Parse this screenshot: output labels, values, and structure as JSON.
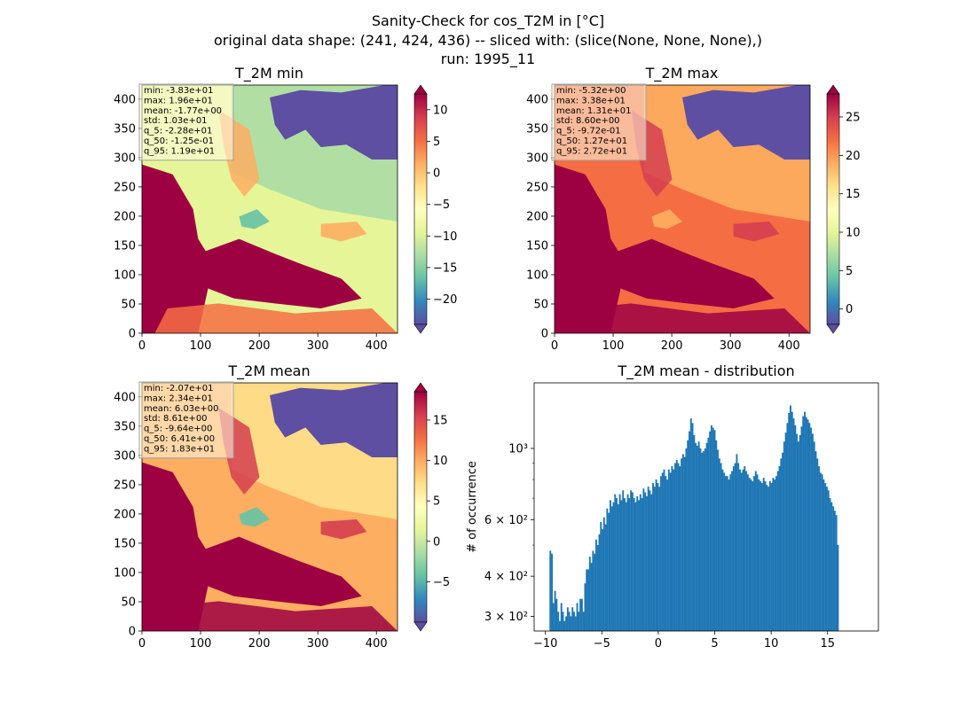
{
  "figure": {
    "title_lines": [
      "Sanity-Check for cos_T2M in [°C]",
      "original data shape: (241, 424, 436) -- sliced with: (slice(None, None, None),)",
      "run: 1995_11"
    ]
  },
  "colors": {
    "colormap": "Spectral_r",
    "histogram_bar": "#1f77b4",
    "stats_box_bg": "#fffbe3",
    "stats_box_edge": "#a0a0a0",
    "land_cold": "#5e4fa2",
    "sea_warm": "#9e0142"
  },
  "chart_data": [
    {
      "type": "heatmap",
      "title": "T_2M min",
      "x_ticks": [
        "0",
        "100",
        "200",
        "300",
        "400"
      ],
      "y_ticks": [
        "0",
        "50",
        "100",
        "150",
        "200",
        "250",
        "300",
        "350",
        "400"
      ],
      "xlim": [
        0,
        436
      ],
      "ylim": [
        0,
        424
      ],
      "colorbar": {
        "vmin": -24.0,
        "vmax": 12.5,
        "ticks": [
          "10",
          "5",
          "0",
          "−5",
          "−10",
          "−15",
          "−20"
        ],
        "tick_values": [
          10,
          5,
          0,
          -5,
          -10,
          -15,
          -20
        ],
        "extend": "both"
      },
      "stats": [
        "min: -3.83e+01",
        "max: 1.96e+01",
        "mean: -1.77e+00",
        "std: 1.03e+01",
        "q_5: -2.28e+01",
        "q_50: -1.25e-01",
        "q_95: 1.19e+01"
      ]
    },
    {
      "type": "heatmap",
      "title": "T_2M max",
      "x_ticks": [
        "0",
        "100",
        "200",
        "300",
        "400"
      ],
      "y_ticks": [
        "0",
        "50",
        "100",
        "150",
        "200",
        "250",
        "300",
        "350",
        "400"
      ],
      "xlim": [
        0,
        436
      ],
      "ylim": [
        0,
        424
      ],
      "colorbar": {
        "vmin": -2.0,
        "vmax": 28.0,
        "ticks": [
          "25",
          "20",
          "15",
          "10",
          "5",
          "0"
        ],
        "tick_values": [
          25,
          20,
          15,
          10,
          5,
          0
        ],
        "extend": "both"
      },
      "stats": [
        "min: -5.32e+00",
        "max: 3.38e+01",
        "mean: 1.31e+01",
        "std: 8.60e+00",
        "q_5: -9.72e-01",
        "q_50: 1.27e+01",
        "q_95: 2.72e+01"
      ]
    },
    {
      "type": "heatmap",
      "title": "T_2M mean",
      "x_ticks": [
        "0",
        "100",
        "200",
        "300",
        "400"
      ],
      "y_ticks": [
        "0",
        "50",
        "100",
        "150",
        "200",
        "250",
        "300",
        "350",
        "400"
      ],
      "xlim": [
        0,
        436
      ],
      "ylim": [
        0,
        424
      ],
      "colorbar": {
        "vmin": -10.0,
        "vmax": 18.5,
        "ticks": [
          "15",
          "10",
          "5",
          "0",
          "−5"
        ],
        "tick_values": [
          15,
          10,
          5,
          0,
          -5
        ],
        "extend": "both"
      },
      "stats": [
        "min: -2.07e+01",
        "max: 2.34e+01",
        "mean: 6.03e+00",
        "std: 8.61e+00",
        "q_5: -9.64e+00",
        "q_50: 6.41e+00",
        "q_95: 1.83e+01"
      ]
    },
    {
      "type": "bar",
      "title": "T_2M mean - distribution",
      "ylabel": "# of occurrence",
      "xlabel": "",
      "y_scale": "log",
      "xlim": [
        -11.0,
        19.5
      ],
      "ylim": [
        270,
        1600
      ],
      "x_ticks": [
        "−10",
        "−5",
        "0",
        "5",
        "10",
        "15"
      ],
      "x_tick_values": [
        -10,
        -5,
        0,
        5,
        10,
        15
      ],
      "y_ticks": [
        "3 × 10²",
        "4 × 10²",
        "6 × 10²",
        "10³"
      ],
      "y_tick_values": [
        300,
        400,
        600,
        1000
      ],
      "bin_start": -9.64,
      "bin_width": 0.14,
      "values": [
        480,
        470,
        330,
        360,
        340,
        310,
        290,
        330,
        310,
        290,
        300,
        320,
        310,
        300,
        320,
        310,
        300,
        330,
        310,
        340,
        340,
        310,
        380,
        420,
        420,
        460,
        440,
        480,
        470,
        520,
        500,
        540,
        590,
        560,
        610,
        580,
        650,
        630,
        690,
        660,
        680,
        720,
        700,
        670,
        720,
        690,
        740,
        700,
        680,
        720,
        700,
        740,
        730,
        700,
        680,
        710,
        690,
        720,
        700,
        750,
        730,
        710,
        760,
        740,
        720,
        780,
        760,
        800,
        780,
        760,
        820,
        840,
        860,
        820,
        800,
        860,
        840,
        880,
        860,
        900,
        920,
        900,
        880,
        930,
        960,
        940,
        1000,
        1060,
        1130,
        1240,
        1200,
        1100,
        1040,
        1020,
        1050,
        1000,
        970,
        980,
        1000,
        1040,
        1080,
        1130,
        1180,
        1160,
        1140,
        1060,
        990,
        930,
        900,
        860,
        840,
        820,
        820,
        800,
        830,
        850,
        880,
        900,
        960,
        900,
        860,
        840,
        860,
        880,
        850,
        830,
        810,
        800,
        790,
        820,
        850,
        830,
        800,
        790,
        780,
        810,
        790,
        770,
        760,
        790,
        780,
        810,
        800,
        820,
        850,
        880,
        930,
        970,
        1050,
        1120,
        1200,
        1290,
        1360,
        1300,
        1240,
        1180,
        1110,
        1050,
        1100,
        1170,
        1260,
        1300,
        1250,
        1230,
        1200,
        1160,
        1110,
        1050,
        980,
        930,
        880,
        840,
        830,
        800,
        780,
        760,
        740,
        700,
        680,
        660,
        640,
        620,
        500
      ]
    }
  ]
}
